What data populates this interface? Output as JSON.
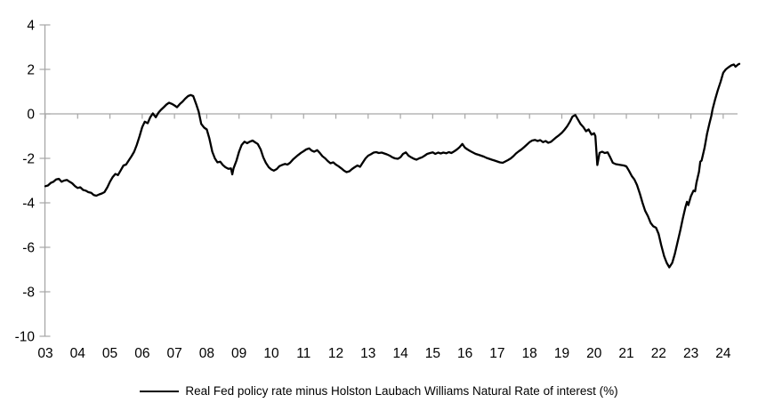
{
  "legend": {
    "label": "Real Fed policy rate minus Holston Laubach Williams Natural Rate of interest (%)"
  },
  "chart_data": {
    "type": "line",
    "title": "",
    "xlabel": "",
    "ylabel": "",
    "legend_position": "bottom-center",
    "grid": "zero-line-only",
    "line_color": "#000000",
    "axis_color": "#a6a6a6",
    "label_color": "#000000",
    "ylim": [
      -10,
      4
    ],
    "xlim": [
      2003,
      2024.6
    ],
    "y_ticks": [
      4,
      2,
      0,
      -2,
      -4,
      -6,
      -8,
      -10
    ],
    "y_tick_labels": [
      "4",
      "2",
      "0",
      "-2",
      "-4",
      "-6",
      "-8",
      "-10"
    ],
    "x_tick_years": [
      2003,
      2004,
      2005,
      2006,
      2007,
      2008,
      2009,
      2010,
      2011,
      2012,
      2013,
      2014,
      2015,
      2016,
      2017,
      2018,
      2019,
      2020,
      2021,
      2022,
      2023,
      2024
    ],
    "x_tick_labels": [
      "03",
      "04",
      "05",
      "06",
      "07",
      "08",
      "09",
      "10",
      "11",
      "12",
      "13",
      "14",
      "15",
      "16",
      "17",
      "18",
      "19",
      "20",
      "21",
      "22",
      "23",
      "24"
    ],
    "series": [
      {
        "name": "Real Fed policy rate minus Holston Laubach Williams Natural Rate of interest (%)",
        "points": [
          [
            2003.0,
            -3.25
          ],
          [
            2003.08,
            -3.22
          ],
          [
            2003.17,
            -3.1
          ],
          [
            2003.25,
            -3.05
          ],
          [
            2003.33,
            -2.95
          ],
          [
            2003.42,
            -2.92
          ],
          [
            2003.5,
            -3.05
          ],
          [
            2003.58,
            -3.0
          ],
          [
            2003.67,
            -2.97
          ],
          [
            2003.75,
            -3.05
          ],
          [
            2003.83,
            -3.12
          ],
          [
            2003.92,
            -3.25
          ],
          [
            2004.0,
            -3.33
          ],
          [
            2004.08,
            -3.3
          ],
          [
            2004.17,
            -3.42
          ],
          [
            2004.25,
            -3.45
          ],
          [
            2004.33,
            -3.52
          ],
          [
            2004.42,
            -3.55
          ],
          [
            2004.5,
            -3.65
          ],
          [
            2004.58,
            -3.68
          ],
          [
            2004.67,
            -3.62
          ],
          [
            2004.75,
            -3.58
          ],
          [
            2004.83,
            -3.52
          ],
          [
            2004.92,
            -3.3
          ],
          [
            2005.0,
            -3.05
          ],
          [
            2005.08,
            -2.85
          ],
          [
            2005.17,
            -2.7
          ],
          [
            2005.25,
            -2.75
          ],
          [
            2005.33,
            -2.55
          ],
          [
            2005.42,
            -2.32
          ],
          [
            2005.5,
            -2.28
          ],
          [
            2005.58,
            -2.1
          ],
          [
            2005.67,
            -1.9
          ],
          [
            2005.75,
            -1.7
          ],
          [
            2005.83,
            -1.4
          ],
          [
            2005.92,
            -1.0
          ],
          [
            2006.0,
            -0.6
          ],
          [
            2006.08,
            -0.35
          ],
          [
            2006.17,
            -0.42
          ],
          [
            2006.25,
            -0.15
          ],
          [
            2006.33,
            0.02
          ],
          [
            2006.42,
            -0.15
          ],
          [
            2006.5,
            0.05
          ],
          [
            2006.58,
            0.18
          ],
          [
            2006.67,
            0.3
          ],
          [
            2006.75,
            0.42
          ],
          [
            2006.83,
            0.5
          ],
          [
            2006.92,
            0.45
          ],
          [
            2007.0,
            0.38
          ],
          [
            2007.08,
            0.3
          ],
          [
            2007.17,
            0.45
          ],
          [
            2007.25,
            0.55
          ],
          [
            2007.33,
            0.68
          ],
          [
            2007.42,
            0.8
          ],
          [
            2007.5,
            0.85
          ],
          [
            2007.58,
            0.8
          ],
          [
            2007.67,
            0.45
          ],
          [
            2007.75,
            0.1
          ],
          [
            2007.83,
            -0.45
          ],
          [
            2007.92,
            -0.62
          ],
          [
            2008.0,
            -0.7
          ],
          [
            2008.08,
            -1.1
          ],
          [
            2008.17,
            -1.7
          ],
          [
            2008.25,
            -2.0
          ],
          [
            2008.33,
            -2.18
          ],
          [
            2008.42,
            -2.15
          ],
          [
            2008.5,
            -2.3
          ],
          [
            2008.58,
            -2.4
          ],
          [
            2008.67,
            -2.47
          ],
          [
            2008.75,
            -2.45
          ],
          [
            2008.79,
            -2.72
          ],
          [
            2008.83,
            -2.45
          ],
          [
            2008.92,
            -2.1
          ],
          [
            2009.0,
            -1.7
          ],
          [
            2009.08,
            -1.4
          ],
          [
            2009.17,
            -1.25
          ],
          [
            2009.25,
            -1.32
          ],
          [
            2009.33,
            -1.25
          ],
          [
            2009.42,
            -1.2
          ],
          [
            2009.5,
            -1.28
          ],
          [
            2009.58,
            -1.35
          ],
          [
            2009.67,
            -1.6
          ],
          [
            2009.75,
            -1.95
          ],
          [
            2009.83,
            -2.2
          ],
          [
            2009.92,
            -2.4
          ],
          [
            2010.0,
            -2.5
          ],
          [
            2010.08,
            -2.55
          ],
          [
            2010.17,
            -2.48
          ],
          [
            2010.25,
            -2.35
          ],
          [
            2010.33,
            -2.3
          ],
          [
            2010.42,
            -2.25
          ],
          [
            2010.5,
            -2.28
          ],
          [
            2010.58,
            -2.2
          ],
          [
            2010.67,
            -2.05
          ],
          [
            2010.75,
            -1.95
          ],
          [
            2010.83,
            -1.85
          ],
          [
            2010.92,
            -1.75
          ],
          [
            2011.0,
            -1.68
          ],
          [
            2011.08,
            -1.6
          ],
          [
            2011.17,
            -1.55
          ],
          [
            2011.25,
            -1.65
          ],
          [
            2011.33,
            -1.7
          ],
          [
            2011.42,
            -1.63
          ],
          [
            2011.5,
            -1.75
          ],
          [
            2011.58,
            -1.9
          ],
          [
            2011.67,
            -2.0
          ],
          [
            2011.75,
            -2.12
          ],
          [
            2011.83,
            -2.22
          ],
          [
            2011.92,
            -2.18
          ],
          [
            2012.0,
            -2.28
          ],
          [
            2012.08,
            -2.35
          ],
          [
            2012.17,
            -2.45
          ],
          [
            2012.25,
            -2.55
          ],
          [
            2012.33,
            -2.62
          ],
          [
            2012.42,
            -2.58
          ],
          [
            2012.5,
            -2.48
          ],
          [
            2012.58,
            -2.4
          ],
          [
            2012.67,
            -2.32
          ],
          [
            2012.75,
            -2.38
          ],
          [
            2012.83,
            -2.2
          ],
          [
            2012.92,
            -2.0
          ],
          [
            2013.0,
            -1.88
          ],
          [
            2013.08,
            -1.82
          ],
          [
            2013.17,
            -1.74
          ],
          [
            2013.25,
            -1.72
          ],
          [
            2013.33,
            -1.76
          ],
          [
            2013.42,
            -1.74
          ],
          [
            2013.5,
            -1.78
          ],
          [
            2013.58,
            -1.82
          ],
          [
            2013.67,
            -1.88
          ],
          [
            2013.75,
            -1.95
          ],
          [
            2013.83,
            -2.0
          ],
          [
            2013.92,
            -2.02
          ],
          [
            2014.0,
            -1.95
          ],
          [
            2014.08,
            -1.8
          ],
          [
            2014.17,
            -1.73
          ],
          [
            2014.25,
            -1.88
          ],
          [
            2014.33,
            -1.95
          ],
          [
            2014.42,
            -2.02
          ],
          [
            2014.5,
            -2.06
          ],
          [
            2014.58,
            -2.0
          ],
          [
            2014.67,
            -1.95
          ],
          [
            2014.75,
            -1.88
          ],
          [
            2014.83,
            -1.8
          ],
          [
            2014.92,
            -1.76
          ],
          [
            2015.0,
            -1.73
          ],
          [
            2015.08,
            -1.8
          ],
          [
            2015.17,
            -1.74
          ],
          [
            2015.25,
            -1.78
          ],
          [
            2015.33,
            -1.74
          ],
          [
            2015.42,
            -1.77
          ],
          [
            2015.5,
            -1.72
          ],
          [
            2015.58,
            -1.76
          ],
          [
            2015.67,
            -1.68
          ],
          [
            2015.75,
            -1.6
          ],
          [
            2015.83,
            -1.5
          ],
          [
            2015.92,
            -1.35
          ],
          [
            2016.0,
            -1.52
          ],
          [
            2016.08,
            -1.6
          ],
          [
            2016.17,
            -1.68
          ],
          [
            2016.25,
            -1.74
          ],
          [
            2016.33,
            -1.8
          ],
          [
            2016.42,
            -1.84
          ],
          [
            2016.5,
            -1.88
          ],
          [
            2016.58,
            -1.92
          ],
          [
            2016.67,
            -1.98
          ],
          [
            2016.75,
            -2.02
          ],
          [
            2016.83,
            -2.06
          ],
          [
            2016.92,
            -2.1
          ],
          [
            2017.0,
            -2.14
          ],
          [
            2017.08,
            -2.18
          ],
          [
            2017.17,
            -2.2
          ],
          [
            2017.25,
            -2.14
          ],
          [
            2017.33,
            -2.08
          ],
          [
            2017.42,
            -2.0
          ],
          [
            2017.5,
            -1.9
          ],
          [
            2017.58,
            -1.78
          ],
          [
            2017.67,
            -1.68
          ],
          [
            2017.75,
            -1.6
          ],
          [
            2017.83,
            -1.5
          ],
          [
            2017.92,
            -1.38
          ],
          [
            2018.0,
            -1.27
          ],
          [
            2018.08,
            -1.2
          ],
          [
            2018.17,
            -1.17
          ],
          [
            2018.25,
            -1.22
          ],
          [
            2018.33,
            -1.18
          ],
          [
            2018.42,
            -1.27
          ],
          [
            2018.5,
            -1.22
          ],
          [
            2018.58,
            -1.3
          ],
          [
            2018.67,
            -1.25
          ],
          [
            2018.75,
            -1.15
          ],
          [
            2018.83,
            -1.05
          ],
          [
            2018.92,
            -0.95
          ],
          [
            2019.0,
            -0.85
          ],
          [
            2019.08,
            -0.72
          ],
          [
            2019.17,
            -0.55
          ],
          [
            2019.25,
            -0.35
          ],
          [
            2019.33,
            -0.12
          ],
          [
            2019.42,
            -0.05
          ],
          [
            2019.5,
            -0.25
          ],
          [
            2019.58,
            -0.45
          ],
          [
            2019.67,
            -0.6
          ],
          [
            2019.75,
            -0.78
          ],
          [
            2019.83,
            -0.7
          ],
          [
            2019.92,
            -0.93
          ],
          [
            2020.0,
            -0.87
          ],
          [
            2020.04,
            -1.0
          ],
          [
            2020.1,
            -2.3
          ],
          [
            2020.17,
            -1.75
          ],
          [
            2020.25,
            -1.7
          ],
          [
            2020.33,
            -1.76
          ],
          [
            2020.42,
            -1.73
          ],
          [
            2020.5,
            -1.95
          ],
          [
            2020.58,
            -2.2
          ],
          [
            2020.67,
            -2.26
          ],
          [
            2020.75,
            -2.28
          ],
          [
            2020.83,
            -2.3
          ],
          [
            2020.92,
            -2.32
          ],
          [
            2021.0,
            -2.36
          ],
          [
            2021.08,
            -2.55
          ],
          [
            2021.17,
            -2.8
          ],
          [
            2021.25,
            -2.95
          ],
          [
            2021.33,
            -3.2
          ],
          [
            2021.42,
            -3.6
          ],
          [
            2021.5,
            -4.0
          ],
          [
            2021.58,
            -4.35
          ],
          [
            2021.67,
            -4.6
          ],
          [
            2021.75,
            -4.9
          ],
          [
            2021.83,
            -5.05
          ],
          [
            2021.92,
            -5.12
          ],
          [
            2022.0,
            -5.4
          ],
          [
            2022.08,
            -5.9
          ],
          [
            2022.17,
            -6.4
          ],
          [
            2022.25,
            -6.7
          ],
          [
            2022.33,
            -6.9
          ],
          [
            2022.42,
            -6.7
          ],
          [
            2022.5,
            -6.3
          ],
          [
            2022.58,
            -5.8
          ],
          [
            2022.67,
            -5.25
          ],
          [
            2022.75,
            -4.7
          ],
          [
            2022.83,
            -4.2
          ],
          [
            2022.88,
            -3.95
          ],
          [
            2022.92,
            -4.1
          ],
          [
            2023.0,
            -3.7
          ],
          [
            2023.08,
            -3.45
          ],
          [
            2023.13,
            -3.48
          ],
          [
            2023.17,
            -3.1
          ],
          [
            2023.25,
            -2.6
          ],
          [
            2023.29,
            -2.15
          ],
          [
            2023.33,
            -2.1
          ],
          [
            2023.42,
            -1.55
          ],
          [
            2023.46,
            -1.22
          ],
          [
            2023.5,
            -0.9
          ],
          [
            2023.58,
            -0.4
          ],
          [
            2023.63,
            -0.1
          ],
          [
            2023.67,
            0.2
          ],
          [
            2023.75,
            0.65
          ],
          [
            2023.83,
            1.05
          ],
          [
            2023.92,
            1.45
          ],
          [
            2024.0,
            1.85
          ],
          [
            2024.08,
            2.0
          ],
          [
            2024.17,
            2.1
          ],
          [
            2024.25,
            2.18
          ],
          [
            2024.33,
            2.22
          ],
          [
            2024.38,
            2.12
          ],
          [
            2024.46,
            2.22
          ],
          [
            2024.5,
            2.25
          ]
        ]
      }
    ]
  }
}
